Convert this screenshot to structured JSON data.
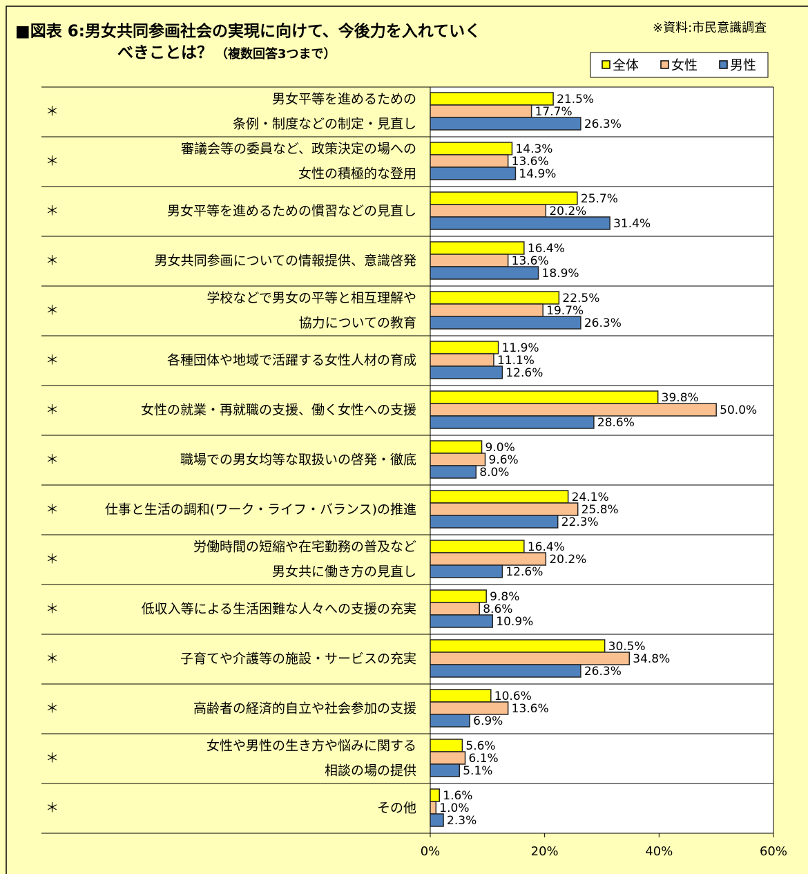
{
  "chart_data": {
    "type": "barh",
    "title": [
      "■図表 6:男女共同参画社会の実現に向けて、今後力を入れていく",
      "べきことは？"
    ],
    "subtitle": "（複数回答3つまで）",
    "source": "※資料:市民意識調査",
    "row_marker": "＊",
    "categories": [
      [
        "男女平等を進めるための",
        "条例・制度などの制定・見直し"
      ],
      [
        "審議会等の委員など、政策決定の場への",
        "女性の積極的な登用"
      ],
      [
        "男女平等を進めるための慣習などの見直し"
      ],
      [
        "男女共同参画についての情報提供、意識啓発"
      ],
      [
        "学校などで男女の平等と相互理解や",
        "協力についての教育"
      ],
      [
        "各種団体や地域で活躍する女性人材の育成"
      ],
      [
        "女性の就業・再就職の支援、働く女性への支援"
      ],
      [
        "職場での男女均等な取扱いの啓発・徹底"
      ],
      [
        "仕事と生活の調和(ワーク・ライフ・バランス)の推進"
      ],
      [
        "労働時間の短縮や在宅勤務の普及など",
        "男女共に働き方の見直し"
      ],
      [
        "低収入等による生活困難な人々への支援の充実"
      ],
      [
        "子育てや介護等の施設・サービスの充実"
      ],
      [
        "高齢者の経済的自立や社会参加の支援"
      ],
      [
        "女性や男性の生き方や悩みに関する",
        "相談の場の提供"
      ],
      [
        "その他"
      ]
    ],
    "series": [
      {
        "name": "全体",
        "color": "#ffff00",
        "values": [
          21.5,
          14.3,
          25.7,
          16.4,
          22.5,
          11.9,
          39.8,
          9.0,
          24.1,
          16.4,
          9.8,
          30.5,
          10.6,
          5.6,
          1.6
        ],
        "value_labels": [
          "21.5%",
          "14.3%",
          "25.7%",
          "16.4%",
          "22.5%",
          "11.9%",
          "39.8%",
          "9.0%",
          "24.1%",
          "16.4%",
          "9.8%",
          "30.5%",
          "10.6%",
          "5.6%",
          "1.6%"
        ]
      },
      {
        "name": "女性",
        "color": "#fac090",
        "values": [
          17.7,
          13.6,
          20.2,
          13.6,
          19.7,
          11.1,
          50.0,
          9.6,
          25.8,
          20.2,
          8.6,
          34.8,
          13.6,
          6.1,
          1.0
        ],
        "value_labels": [
          "17.7%",
          "13.6%",
          "20.2%",
          "13.6%",
          "19.7%",
          "11.1%",
          "50.0%",
          "9.6%",
          "25.8%",
          "20.2%",
          "8.6%",
          "34.8%",
          "13.6%",
          "6.1%",
          "1.0%"
        ]
      },
      {
        "name": "男性",
        "color": "#4f81bd",
        "values": [
          26.3,
          14.9,
          31.4,
          18.9,
          26.3,
          12.6,
          28.6,
          8.0,
          22.3,
          12.6,
          10.9,
          26.3,
          6.9,
          5.1,
          2.3
        ],
        "value_labels": [
          "26.3%",
          "14.9%",
          "31.4%",
          "18.9%",
          "26.3%",
          "12.6%",
          "28.6%",
          "8.0%",
          "22.3%",
          "12.6%",
          "10.9%",
          "26.3%",
          "6.9%",
          "5.1%",
          "2.3%"
        ]
      }
    ],
    "xlim": [
      0,
      60
    ],
    "xticks": [
      {
        "value": 0,
        "label": "0%"
      },
      {
        "value": 20,
        "label": "20%"
      },
      {
        "value": 40,
        "label": "40%"
      },
      {
        "value": 60,
        "label": "60%"
      }
    ],
    "grid": false
  }
}
